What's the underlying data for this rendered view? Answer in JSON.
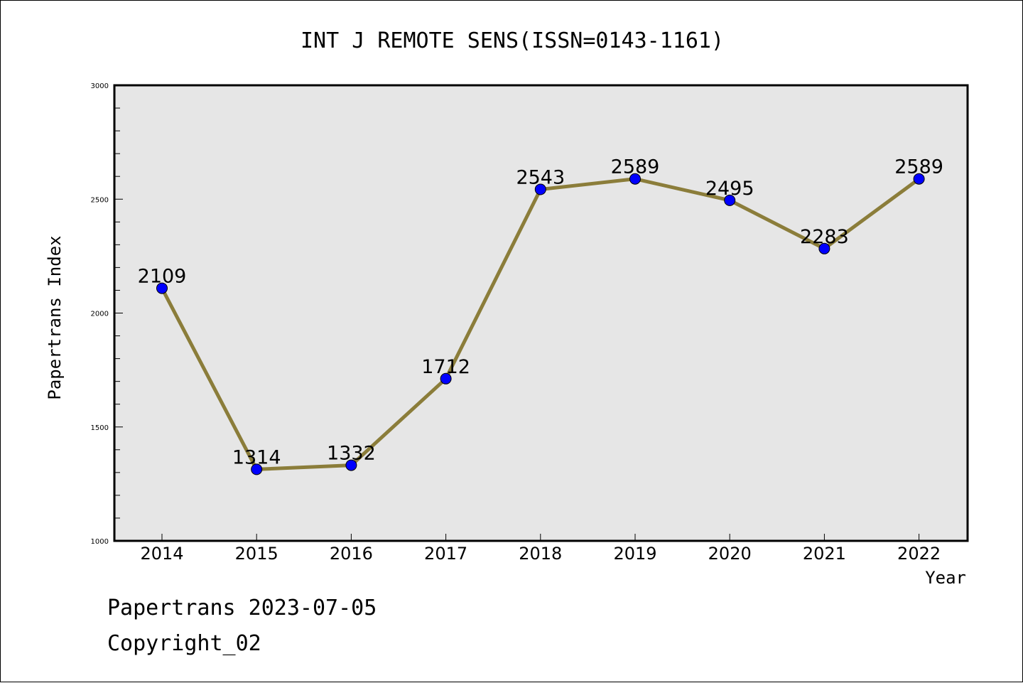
{
  "chart_data": {
    "type": "line",
    "title": "INT J REMOTE SENS(ISSN=0143-1161)",
    "xlabel": "Year",
    "ylabel": "Papertrans Index",
    "x": [
      "2014",
      "2015",
      "2016",
      "2017",
      "2018",
      "2019",
      "2020",
      "2021",
      "2022"
    ],
    "values": [
      2109,
      1314,
      1332,
      1712,
      2543,
      2589,
      2495,
      2283,
      2589
    ],
    "data_labels": [
      "2109",
      "1314",
      "1332",
      "1712",
      "2543",
      "2589",
      "2495",
      "2283",
      "2589"
    ],
    "ylim": [
      1000,
      3000
    ],
    "yticks": [
      "1000",
      "1500",
      "2000",
      "2500",
      "3000"
    ],
    "ytick_values": [
      1000,
      1500,
      2000,
      2500,
      3000
    ],
    "grid": false,
    "legend": "none",
    "line_color": "#8b7d3a",
    "marker_color": "#0000ff",
    "plot_background": "#e6e6e6"
  },
  "footer": {
    "date_text": "Papertrans 2023-07-05",
    "copyright": "Copyright_02"
  }
}
